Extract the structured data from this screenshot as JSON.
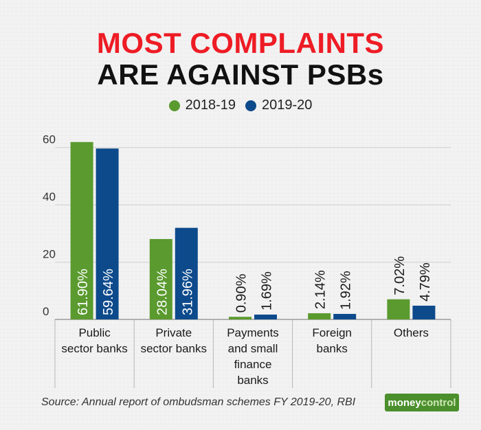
{
  "title_line1": "MOST COMPLAINTS",
  "title_line2": "ARE AGAINST PSBs",
  "source": "Source: Annual report of ombudsman schemes FY 2019-20, RBI",
  "logo": {
    "part1": "money",
    "part2": "control"
  },
  "chart_data": {
    "type": "bar",
    "title": "MOST COMPLAINTS ARE AGAINST PSBs",
    "categories": [
      [
        "Public",
        "sector banks"
      ],
      [
        "Private",
        "sector banks"
      ],
      [
        "Payments",
        "and small",
        "finance",
        "banks"
      ],
      [
        "Foreign",
        "banks"
      ],
      [
        "Others"
      ]
    ],
    "series": [
      {
        "name": "2018-19",
        "color": "#5a9a2e",
        "values": [
          61.9,
          28.04,
          0.9,
          2.14,
          7.02
        ],
        "labels": [
          "61.90%",
          "28.04%",
          "0.90%",
          "2.14%",
          "7.02%"
        ]
      },
      {
        "name": "2019-20",
        "color": "#0d4a8c",
        "values": [
          59.64,
          31.96,
          1.69,
          1.92,
          4.79
        ],
        "labels": [
          "59.64%",
          "31.96%",
          "1.69%",
          "1.92%",
          "4.79%"
        ]
      }
    ],
    "yticks": [
      0,
      20,
      40,
      60
    ],
    "ylim": [
      0,
      64
    ],
    "grid": true,
    "legend": "top-center"
  }
}
